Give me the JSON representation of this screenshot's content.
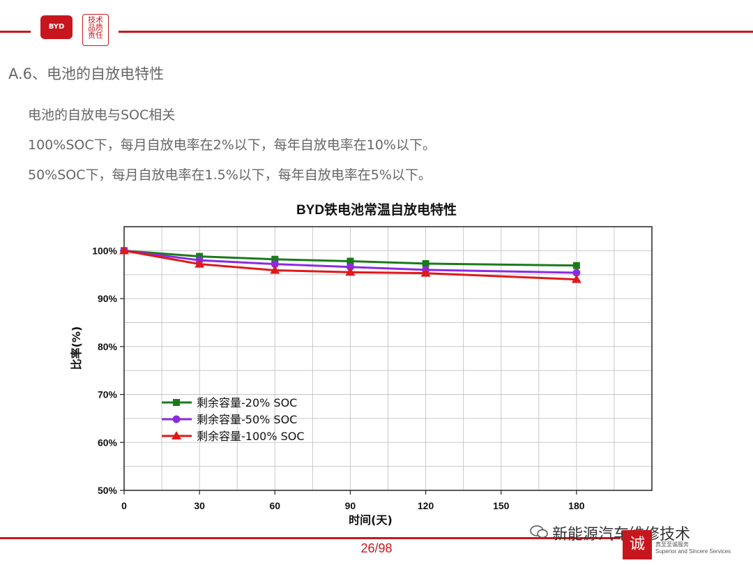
{
  "header": {
    "logo_text": "BYD",
    "seal_text": "技术 品质 责任",
    "accent_color": "#c8161e"
  },
  "heading": "A.6、电池的自放电特性",
  "lines": [
    "电池的自放电与SOC相关",
    "100%SOC下，每月自放电率在2%以下，每年自放电率在10%以下。",
    "50%SOC下，每月自放电率在1.5%以下，每年自放电率在5%以下。"
  ],
  "chart_data": {
    "type": "line",
    "title": "BYD铁电池常温自放电特性",
    "xlabel": "时间(天)",
    "ylabel": "比率(%)",
    "xlim": [
      0,
      210
    ],
    "ylim": [
      50,
      105
    ],
    "xticks": [
      0,
      30,
      60,
      90,
      120,
      150,
      180
    ],
    "yticks": [
      50,
      60,
      70,
      80,
      90,
      100
    ],
    "grid": true,
    "legend_position": "lower-left",
    "x": [
      0,
      30,
      60,
      90,
      120,
      180
    ],
    "series": [
      {
        "name": "剩余容量-20% SOC",
        "color": "#1a7a1a",
        "marker": "square",
        "values": [
          100,
          98.8,
          98.2,
          97.8,
          97.3,
          96.9
        ]
      },
      {
        "name": "剩余容量-50% SOC",
        "color": "#8a2be2",
        "marker": "circle",
        "values": [
          100,
          98.0,
          97.2,
          96.6,
          96.0,
          95.4
        ]
      },
      {
        "name": "剩余容量-100% SOC",
        "color": "#e01818",
        "marker": "triangle",
        "values": [
          100,
          97.2,
          95.9,
          95.5,
          95.3,
          94.0
        ]
      }
    ]
  },
  "footer": {
    "page": "26/98",
    "watermark": "新能源汽车维修技术",
    "stamp_char": "诚",
    "stamp_line1": "真至至诚服务",
    "stamp_line2": "Superior and Sincere Services"
  }
}
